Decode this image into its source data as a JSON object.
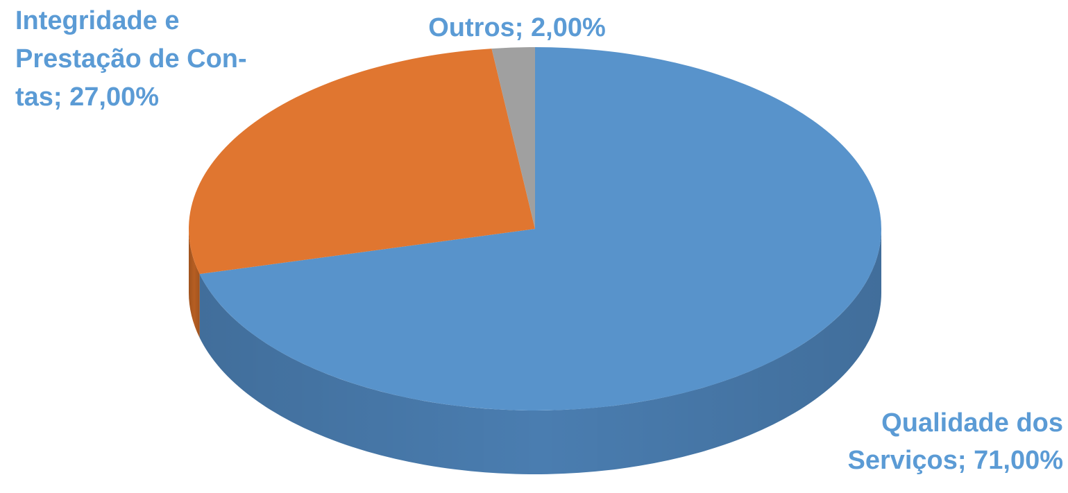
{
  "chart_data": {
    "type": "pie3d",
    "values": [
      71,
      27,
      2
    ],
    "value_labels": [
      "Qualidade dos\nServiços; 71,00%",
      "Integridade e\nPrestação de Con-\ntas; 27,00%",
      "Outros; 2,00%"
    ],
    "colors": [
      "#5893cb",
      "#e07630",
      "#a0a0a0"
    ],
    "side_colors": [
      "#4a7db0",
      "#b65e22",
      "#808080"
    ]
  }
}
